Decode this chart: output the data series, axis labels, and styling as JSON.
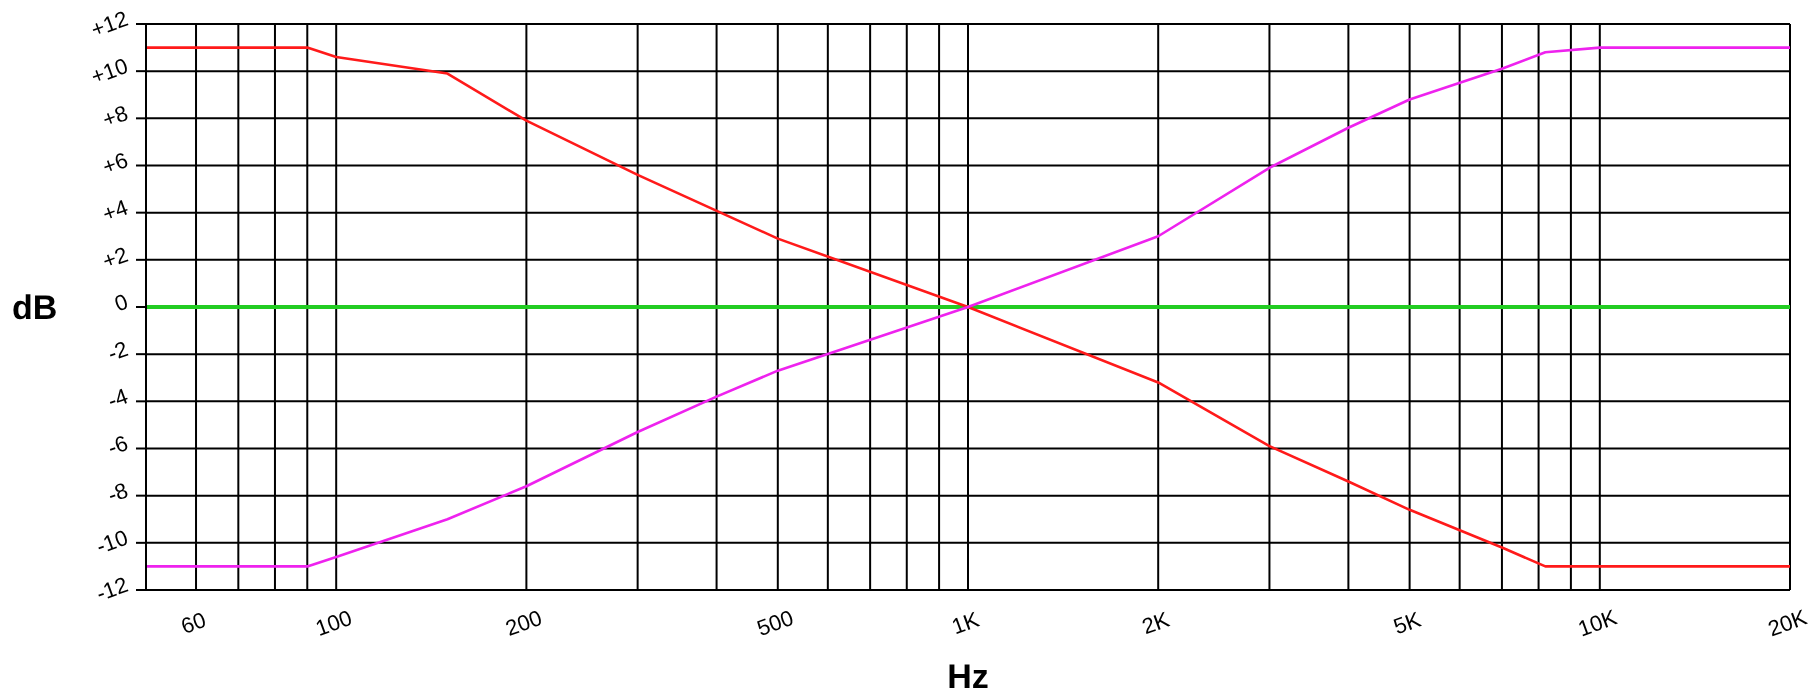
{
  "chart_data": {
    "type": "line",
    "xlabel": "Hz",
    "ylabel": "dB",
    "log": "x",
    "xlim": [
      50,
      20000
    ],
    "ylim": [
      -12,
      12
    ],
    "xticks": [
      {
        "value": 60,
        "label": "60"
      },
      {
        "value": 70,
        "label": null
      },
      {
        "value": 80,
        "label": null
      },
      {
        "value": 90,
        "label": null
      },
      {
        "value": 100,
        "label": "100"
      },
      {
        "value": 200,
        "label": "200"
      },
      {
        "value": 300,
        "label": null
      },
      {
        "value": 400,
        "label": null
      },
      {
        "value": 500,
        "label": "500"
      },
      {
        "value": 600,
        "label": null
      },
      {
        "value": 700,
        "label": null
      },
      {
        "value": 800,
        "label": null
      },
      {
        "value": 900,
        "label": null
      },
      {
        "value": 1000,
        "label": "1K"
      },
      {
        "value": 2000,
        "label": "2K"
      },
      {
        "value": 3000,
        "label": null
      },
      {
        "value": 4000,
        "label": null
      },
      {
        "value": 5000,
        "label": "5K"
      },
      {
        "value": 6000,
        "label": null
      },
      {
        "value": 7000,
        "label": null
      },
      {
        "value": 8000,
        "label": null
      },
      {
        "value": 9000,
        "label": null
      },
      {
        "value": 10000,
        "label": "10K"
      },
      {
        "value": 20000,
        "label": "20K"
      }
    ],
    "yticks": [
      {
        "value": 12,
        "label": "+12"
      },
      {
        "value": 10,
        "label": "+10"
      },
      {
        "value": 8,
        "label": "+8"
      },
      {
        "value": 6,
        "label": "+6"
      },
      {
        "value": 4,
        "label": "+4"
      },
      {
        "value": 2,
        "label": "+2"
      },
      {
        "value": 0,
        "label": "0"
      },
      -2,
      -4,
      -6,
      -8,
      -10,
      -12
    ],
    "grid": true,
    "marker": "none",
    "line_style": "solid",
    "ref_lines": [
      {
        "axis": "y",
        "value": 0,
        "color": "#22cc22"
      }
    ],
    "series": [
      {
        "color": "#ff1a1a",
        "x": [
          50,
          90,
          100,
          150,
          200,
          300,
          500,
          1000,
          2000,
          3000,
          4000,
          5000,
          7000,
          8200,
          20000
        ],
        "values": [
          11,
          11,
          10.6,
          9.9,
          7.9,
          5.6,
          2.9,
          0,
          -3.2,
          -5.9,
          -7.4,
          -8.6,
          -10.2,
          -11,
          -11
        ]
      },
      {
        "color": "#ee22ee",
        "x": [
          50,
          90,
          100,
          150,
          200,
          300,
          400,
          500,
          1000,
          2000,
          3000,
          4000,
          5000,
          7000,
          8200,
          10000,
          20000
        ],
        "values": [
          -11,
          -11,
          -10.6,
          -9,
          -7.6,
          -5.3,
          -3.8,
          -2.7,
          0,
          3,
          5.9,
          7.6,
          8.8,
          10.1,
          10.8,
          11,
          11
        ]
      }
    ]
  }
}
